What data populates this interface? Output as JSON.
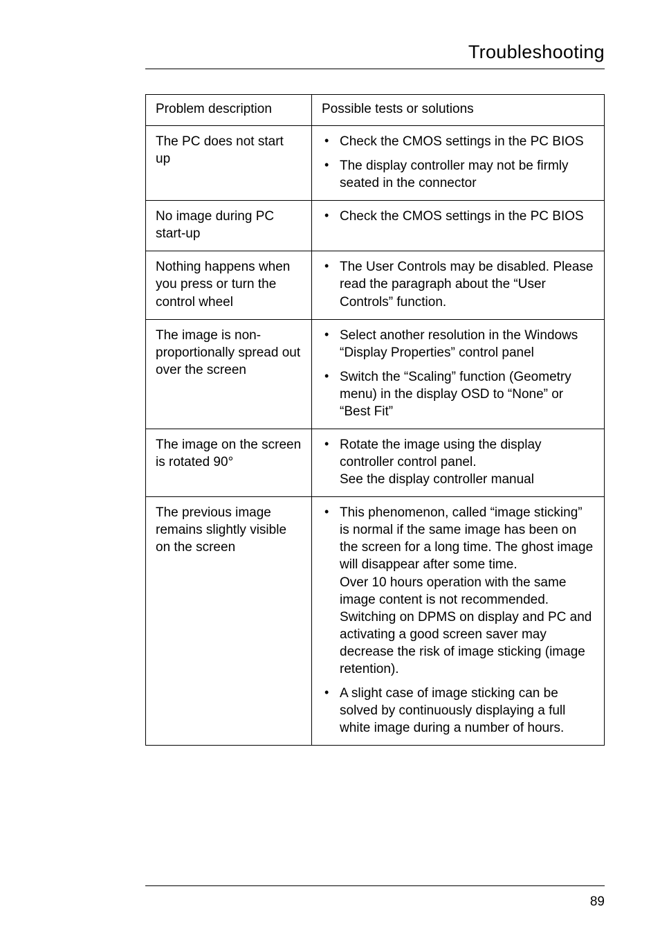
{
  "page": {
    "section_title": "Troubleshooting",
    "page_number": "89"
  },
  "table": {
    "headers": {
      "col1": "Problem description",
      "col2": "Possible tests or solutions"
    },
    "rows": [
      {
        "problem": "The PC does not start up",
        "solutions": [
          "Check the CMOS settings in the PC BIOS",
          "The display controller may not be firmly seated in the connector"
        ]
      },
      {
        "problem": "No image during PC start-up",
        "solutions": [
          "Check the CMOS settings in the PC BIOS"
        ]
      },
      {
        "problem": "Nothing happens when you press or turn the control wheel",
        "solutions": [
          "The User Controls may be disabled. Please read the paragraph about the “User Controls” function."
        ]
      },
      {
        "problem": "The image is non-proportionally spread out over the screen",
        "solutions": [
          "Select another resolution in the Windows “Display Properties” control panel",
          "Switch the “Scaling” function (Geometry menu) in the display OSD to “None” or “Best Fit”"
        ]
      },
      {
        "problem": "The image on the screen is rotated 90°",
        "solutions": [
          "Rotate the image using the display controller control panel.\nSee the display controller manual"
        ]
      },
      {
        "problem": "The previous image remains slightly visible on the screen",
        "solutions": [
          "This phenomenon, called “image sticking” is normal if the same image has been on the screen for a long time. The ghost image will disappear after some time.\nOver 10 hours operation with the same image content is not recommended. Switching on DPMS on display and PC and activating a good screen saver may decrease the risk of image sticking (image retention).",
          "A slight case of image sticking can be solved by continuously displaying a full white image during a number of hours."
        ]
      }
    ]
  }
}
